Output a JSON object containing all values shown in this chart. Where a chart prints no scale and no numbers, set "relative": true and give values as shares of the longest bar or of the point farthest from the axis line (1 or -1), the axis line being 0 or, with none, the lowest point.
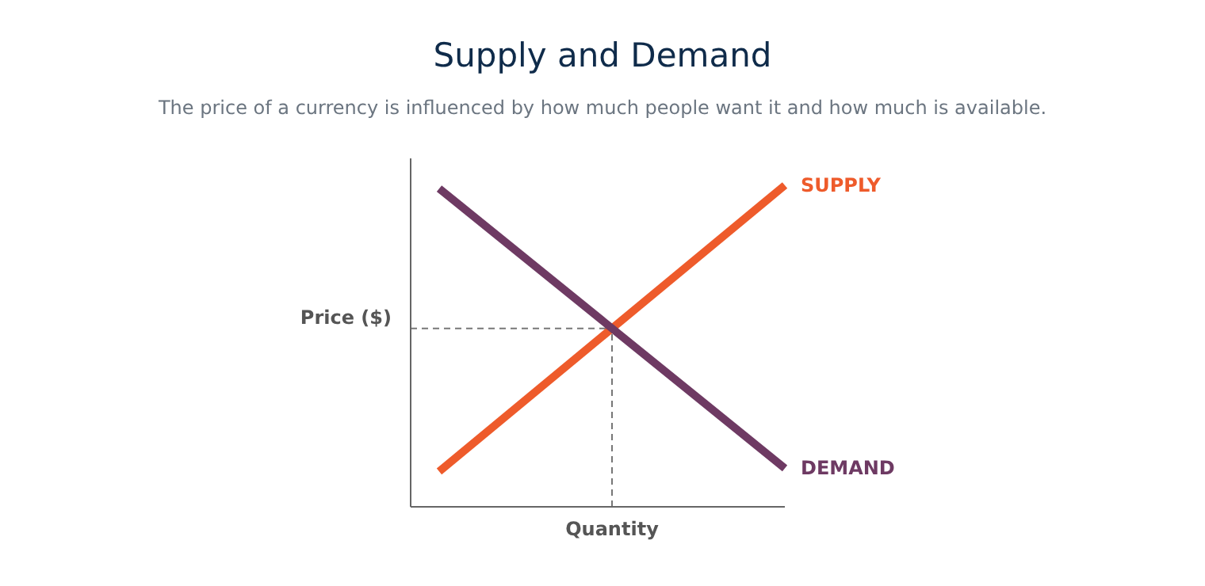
{
  "chart_data": {
    "type": "line",
    "title": "Supply and Demand",
    "subtitle": "The price of a currency is influenced by how much people want it and how much is available.",
    "relative": true,
    "categories": [
      null,
      null
    ],
    "xlabel": "Quantity",
    "ylabel": "Price ($)",
    "legend": false,
    "marker": "none",
    "line_style": "solid",
    "series": [
      {
        "name": "SUPPLY",
        "color": "#ee5b2b",
        "values": [
          0.11,
          1
        ]
      },
      {
        "name": "DEMAND",
        "color": "#6e3a63",
        "values": [
          0.99,
          0.12
        ]
      }
    ]
  }
}
